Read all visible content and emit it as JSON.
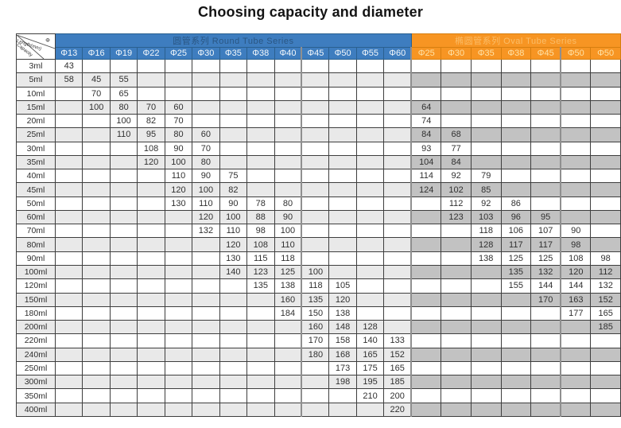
{
  "title": "Choosing capacity and diameter",
  "corner": {
    "top_label": "Φ",
    "middle_label": "Length(mm)",
    "bottom_label": "Capacity"
  },
  "sections": {
    "round": {
      "label": "圆管系列 Round Tube Series",
      "columns": [
        "Φ13",
        "Φ16",
        "Φ19",
        "Φ22",
        "Φ25",
        "Φ30",
        "Φ35",
        "Φ38",
        "Φ40",
        "Φ45",
        "Φ50",
        "Φ55",
        "Φ60"
      ]
    },
    "oval": {
      "label": "椭圆管系列 Oval Tube Series",
      "columns": [
        "Φ25",
        "Φ30",
        "Φ35",
        "Φ38",
        "Φ45",
        "Φ50",
        "Φ50"
      ]
    }
  },
  "colors": {
    "round_header_bg": "#3e7dbf",
    "round_header_text": "#ffffff",
    "oval_header_bg": "#f79523",
    "oval_header_text": "#ffe2a6",
    "zebra_gray_round": "#e9e9e9",
    "zebra_gray_oval": "#c2c2c2",
    "grid_line": "#3e3e3e"
  },
  "chart_data": {
    "type": "table",
    "title": "Choosing capacity and diameter",
    "row_header": "Capacity",
    "cell_value_meaning": "Length(mm)",
    "column_groups": [
      {
        "name": "圆管系列 Round Tube Series",
        "columns": [
          "Φ13",
          "Φ16",
          "Φ19",
          "Φ22",
          "Φ25",
          "Φ30",
          "Φ35",
          "Φ38",
          "Φ40",
          "Φ45",
          "Φ50",
          "Φ55",
          "Φ60"
        ]
      },
      {
        "name": "椭圆管系列 Oval Tube Series",
        "columns": [
          "Φ25",
          "Φ30",
          "Φ35",
          "Φ38",
          "Φ45",
          "Φ50",
          "Φ50"
        ]
      }
    ],
    "capacities": [
      "3ml",
      "5ml",
      "10ml",
      "15ml",
      "20ml",
      "25ml",
      "30ml",
      "35ml",
      "40ml",
      "45ml",
      "50ml",
      "60ml",
      "70ml",
      "80ml",
      "90ml",
      "100ml",
      "120ml",
      "150ml",
      "180ml",
      "200ml",
      "220ml",
      "240ml",
      "250ml",
      "300ml",
      "350ml",
      "400ml"
    ],
    "rows": [
      [
        "43",
        "",
        "",
        "",
        "",
        "",
        "",
        "",
        "",
        "",
        "",
        "",
        "",
        "",
        "",
        "",
        "",
        "",
        "",
        ""
      ],
      [
        "58",
        "45",
        "55",
        "",
        "",
        "",
        "",
        "",
        "",
        "",
        "",
        "",
        "",
        "",
        "",
        "",
        "",
        "",
        "",
        ""
      ],
      [
        "",
        "70",
        "65",
        "",
        "",
        "",
        "",
        "",
        "",
        "",
        "",
        "",
        "",
        "",
        "",
        "",
        "",
        "",
        "",
        ""
      ],
      [
        "",
        "100",
        "80",
        "70",
        "60",
        "",
        "",
        "",
        "",
        "",
        "",
        "",
        "",
        "64",
        "",
        "",
        "",
        "",
        "",
        ""
      ],
      [
        "",
        "",
        "100",
        "82",
        "70",
        "",
        "",
        "",
        "",
        "",
        "",
        "",
        "",
        "74",
        "",
        "",
        "",
        "",
        "",
        ""
      ],
      [
        "",
        "",
        "110",
        "95",
        "80",
        "60",
        "",
        "",
        "",
        "",
        "",
        "",
        "",
        "84",
        "68",
        "",
        "",
        "",
        "",
        ""
      ],
      [
        "",
        "",
        "",
        "108",
        "90",
        "70",
        "",
        "",
        "",
        "",
        "",
        "",
        "",
        "93",
        "77",
        "",
        "",
        "",
        "",
        ""
      ],
      [
        "",
        "",
        "",
        "120",
        "100",
        "80",
        "",
        "",
        "",
        "",
        "",
        "",
        "",
        "104",
        "84",
        "",
        "",
        "",
        "",
        ""
      ],
      [
        "",
        "",
        "",
        "",
        "110",
        "90",
        "75",
        "",
        "",
        "",
        "",
        "",
        "",
        "114",
        "92",
        "79",
        "",
        "",
        "",
        ""
      ],
      [
        "",
        "",
        "",
        "",
        "120",
        "100",
        "82",
        "",
        "",
        "",
        "",
        "",
        "",
        "124",
        "102",
        "85",
        "",
        "",
        "",
        ""
      ],
      [
        "",
        "",
        "",
        "",
        "130",
        "110",
        "90",
        "78",
        "80",
        "",
        "",
        "",
        "",
        "",
        "112",
        "92",
        "86",
        "",
        "",
        ""
      ],
      [
        "",
        "",
        "",
        "",
        "",
        "120",
        "100",
        "88",
        "90",
        "",
        "",
        "",
        "",
        "",
        "123",
        "103",
        "96",
        "95",
        "",
        ""
      ],
      [
        "",
        "",
        "",
        "",
        "",
        "132",
        "110",
        "98",
        "100",
        "",
        "",
        "",
        "",
        "",
        "",
        "118",
        "106",
        "107",
        "90",
        ""
      ],
      [
        "",
        "",
        "",
        "",
        "",
        "",
        "120",
        "108",
        "110",
        "",
        "",
        "",
        "",
        "",
        "",
        "128",
        "117",
        "117",
        "98",
        ""
      ],
      [
        "",
        "",
        "",
        "",
        "",
        "",
        "130",
        "115",
        "118",
        "",
        "",
        "",
        "",
        "",
        "",
        "138",
        "125",
        "125",
        "108",
        "98"
      ],
      [
        "",
        "",
        "",
        "",
        "",
        "",
        "140",
        "123",
        "125",
        "100",
        "",
        "",
        "",
        "",
        "",
        "",
        "135",
        "132",
        "120",
        "112"
      ],
      [
        "",
        "",
        "",
        "",
        "",
        "",
        "",
        "135",
        "138",
        "118",
        "105",
        "",
        "",
        "",
        "",
        "",
        "155",
        "144",
        "144",
        "132"
      ],
      [
        "",
        "",
        "",
        "",
        "",
        "",
        "",
        "",
        "160",
        "135",
        "120",
        "",
        "",
        "",
        "",
        "",
        "",
        "170",
        "163",
        "152"
      ],
      [
        "",
        "",
        "",
        "",
        "",
        "",
        "",
        "",
        "184",
        "150",
        "138",
        "",
        "",
        "",
        "",
        "",
        "",
        "",
        "177",
        "165"
      ],
      [
        "",
        "",
        "",
        "",
        "",
        "",
        "",
        "",
        "",
        "160",
        "148",
        "128",
        "",
        "",
        "",
        "",
        "",
        "",
        "",
        "185"
      ],
      [
        "",
        "",
        "",
        "",
        "",
        "",
        "",
        "",
        "",
        "170",
        "158",
        "140",
        "133",
        "",
        "",
        "",
        "",
        "",
        "",
        ""
      ],
      [
        "",
        "",
        "",
        "",
        "",
        "",
        "",
        "",
        "",
        "180",
        "168",
        "165",
        "152",
        "",
        "",
        "",
        "",
        "",
        "",
        ""
      ],
      [
        "",
        "",
        "",
        "",
        "",
        "",
        "",
        "",
        "",
        "",
        "173",
        "175",
        "165",
        "",
        "",
        "",
        "",
        "",
        "",
        ""
      ],
      [
        "",
        "",
        "",
        "",
        "",
        "",
        "",
        "",
        "",
        "",
        "198",
        "195",
        "185",
        "",
        "",
        "",
        "",
        "",
        "",
        ""
      ],
      [
        "",
        "",
        "",
        "",
        "",
        "",
        "",
        "",
        "",
        "",
        "",
        "210",
        "200",
        "",
        "",
        "",
        "",
        "",
        "",
        ""
      ],
      [
        "",
        "",
        "",
        "",
        "",
        "",
        "",
        "",
        "",
        "",
        "",
        "",
        "220",
        "",
        "",
        "",
        "",
        "",
        "",
        ""
      ]
    ]
  }
}
